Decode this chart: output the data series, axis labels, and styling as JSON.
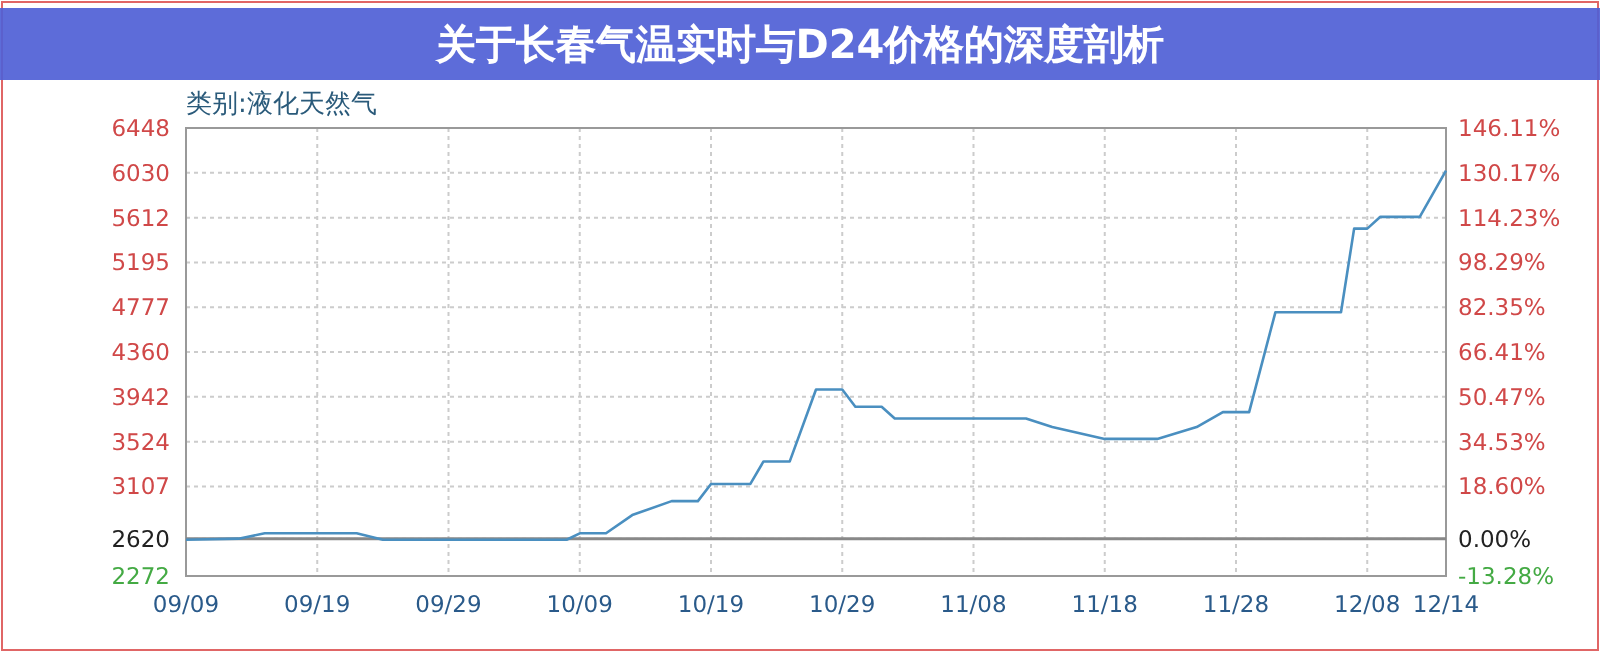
{
  "chart_data": {
    "type": "line",
    "title": "关于长春气温实时与D24价格的深度剖析",
    "subtitle": "类别:液化天然气",
    "series": [
      {
        "color": "#4a8fc0",
        "x": [
          "--09-09",
          "--09-13",
          "--09-15",
          "--09-22",
          "--09-24",
          "--10-08",
          "--10-09",
          "--10-11",
          "--10-13",
          "--10-16",
          "--10-18",
          "--10-19",
          "--10-22",
          "--10-23",
          "--10-25",
          "--10-27",
          "--10-29",
          "--10-30",
          "--11-01",
          "--11-02",
          "--11-12",
          "--11-14",
          "--11-18",
          "--11-22",
          "--11-25",
          "--11-27",
          "--11-29",
          "--12-01",
          "--12-06",
          "--12-07",
          "--12-08",
          "--12-09",
          "--12-12",
          "--12-14"
        ],
        "values": [
          2610,
          2620,
          2670,
          2670,
          2610,
          2610,
          2670,
          2670,
          2840,
          2970,
          2970,
          3130,
          3130,
          3340,
          3340,
          4010,
          4010,
          3850,
          3850,
          3740,
          3740,
          3660,
          3550,
          3550,
          3660,
          3800,
          3800,
          4730,
          4730,
          5510,
          5510,
          5620,
          5620,
          6050
        ]
      }
    ],
    "xlim": [
      "--09-09",
      "--12-14"
    ],
    "xticks": [
      {
        "value": "--09-09",
        "label": "09/09"
      },
      {
        "value": "--09-19",
        "label": "09/19"
      },
      {
        "value": "--09-29",
        "label": "09/29"
      },
      {
        "value": "--10-09",
        "label": "10/09"
      },
      {
        "value": "--10-19",
        "label": "10/19"
      },
      {
        "value": "--10-29",
        "label": "10/29"
      },
      {
        "value": "--11-08",
        "label": "11/08"
      },
      {
        "value": "--11-18",
        "label": "11/18"
      },
      {
        "value": "--11-28",
        "label": "11/28"
      },
      {
        "value": "--12-08",
        "label": "12/08"
      },
      {
        "value": "--12-14",
        "label": "12/14"
      }
    ],
    "ylim": [
      2272,
      6448
    ],
    "yticks": [
      2272,
      2620,
      3107,
      3524,
      3942,
      4360,
      4777,
      5195,
      5612,
      6030,
      6448
    ],
    "y2lim": [
      -13.28,
      146.11
    ],
    "y2ticks": [
      {
        "value": -13.28,
        "label": "-13.28%"
      },
      {
        "value": 0,
        "label": "0.00%"
      },
      {
        "value": 18.6,
        "label": "18.60%"
      },
      {
        "value": 34.53,
        "label": "34.53%"
      },
      {
        "value": 50.47,
        "label": "50.47%"
      },
      {
        "value": 66.41,
        "label": "66.41%"
      },
      {
        "value": 82.35,
        "label": "82.35%"
      },
      {
        "value": 98.29,
        "label": "98.29%"
      },
      {
        "value": 114.23,
        "label": "114.23%"
      },
      {
        "value": 130.17,
        "label": "130.17%"
      },
      {
        "value": 146.11,
        "label": "146.11%"
      }
    ],
    "ref_lines": [
      {
        "axis": "y",
        "value": 2620,
        "color": "#888888"
      }
    ],
    "grid": true,
    "marker": "none",
    "line_style": "solid"
  }
}
